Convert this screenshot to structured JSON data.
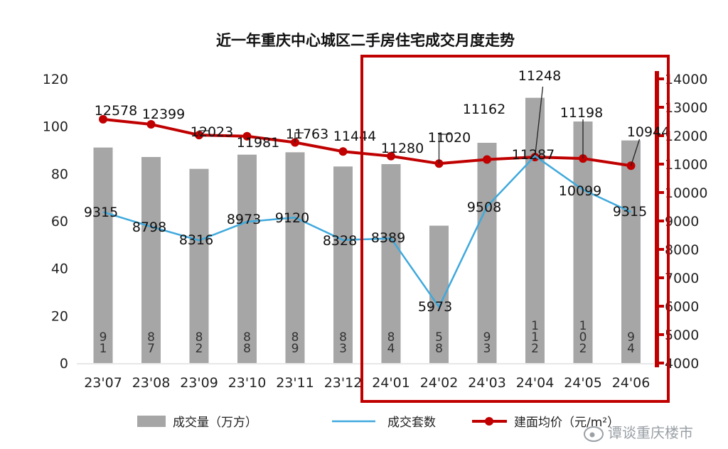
{
  "chart_data": {
    "type": "bar+line",
    "title": "近一年重庆中心城区二手房住宅成交月度走势",
    "categories": [
      "23'07",
      "23'08",
      "23'09",
      "23'10",
      "23'11",
      "23'12",
      "24'01",
      "24'02",
      "24'03",
      "24'04",
      "24'05",
      "24'06"
    ],
    "y_left": {
      "ticks": [
        "0",
        "20",
        "40",
        "60",
        "80",
        "100",
        "120"
      ],
      "ylim": [
        0,
        120
      ]
    },
    "y_right": {
      "ticks": [
        "4000",
        "5000",
        "6000",
        "7000",
        "8000",
        "9000",
        "10000",
        "11000",
        "12000",
        "13000",
        "14000"
      ],
      "ylim": [
        4000,
        14000
      ],
      "color": "#c00000"
    },
    "series": [
      {
        "name": "成交量（万方）",
        "type": "bar",
        "axis": "left",
        "color": "#a6a6a6",
        "values": [
          91,
          87,
          82,
          88,
          89,
          83,
          84,
          58,
          93,
          112,
          102,
          94
        ],
        "value_labels": [
          "9\n1",
          "8\n7",
          "8\n2",
          "8\n8",
          "8\n9",
          "8\n3",
          "8\n4",
          "5\n8",
          "9\n3",
          "1\n1\n2",
          "1\n0\n2",
          "9\n4"
        ]
      },
      {
        "name": "成交套数",
        "type": "line",
        "axis": "right",
        "color": "#3fa9dc",
        "values": [
          9315,
          8798,
          8316,
          8973,
          9120,
          8328,
          8389,
          5973,
          9508,
          11287,
          10099,
          9315
        ],
        "value_labels": [
          "9315",
          "8798",
          "8316",
          "8973",
          "9120",
          "8328",
          "8389",
          "5973",
          "9508",
          "11287",
          "10099",
          "9315"
        ]
      },
      {
        "name": "建面均价（元/m²）",
        "type": "line",
        "axis": "right",
        "color": "#c00000",
        "values": [
          12578,
          12399,
          12023,
          11981,
          11763,
          11444,
          11280,
          11020,
          11162,
          11248,
          11198,
          10944
        ],
        "value_labels": [
          "12578",
          "12399",
          "12023",
          "11981",
          "11763",
          "11444",
          "11280",
          "11020",
          "11162",
          "11248",
          "11198",
          "10944"
        ]
      }
    ],
    "highlight_box": {
      "from": "24'01",
      "to": "24'06",
      "color": "#c00000"
    },
    "legend": {
      "placement": "bottom",
      "items": [
        "成交量（万方）",
        "成交套数",
        "建面均价（元/m²）"
      ]
    },
    "grid": false
  },
  "watermark": "谭谈重庆楼市",
  "watermark_icon": "weibo-icon"
}
